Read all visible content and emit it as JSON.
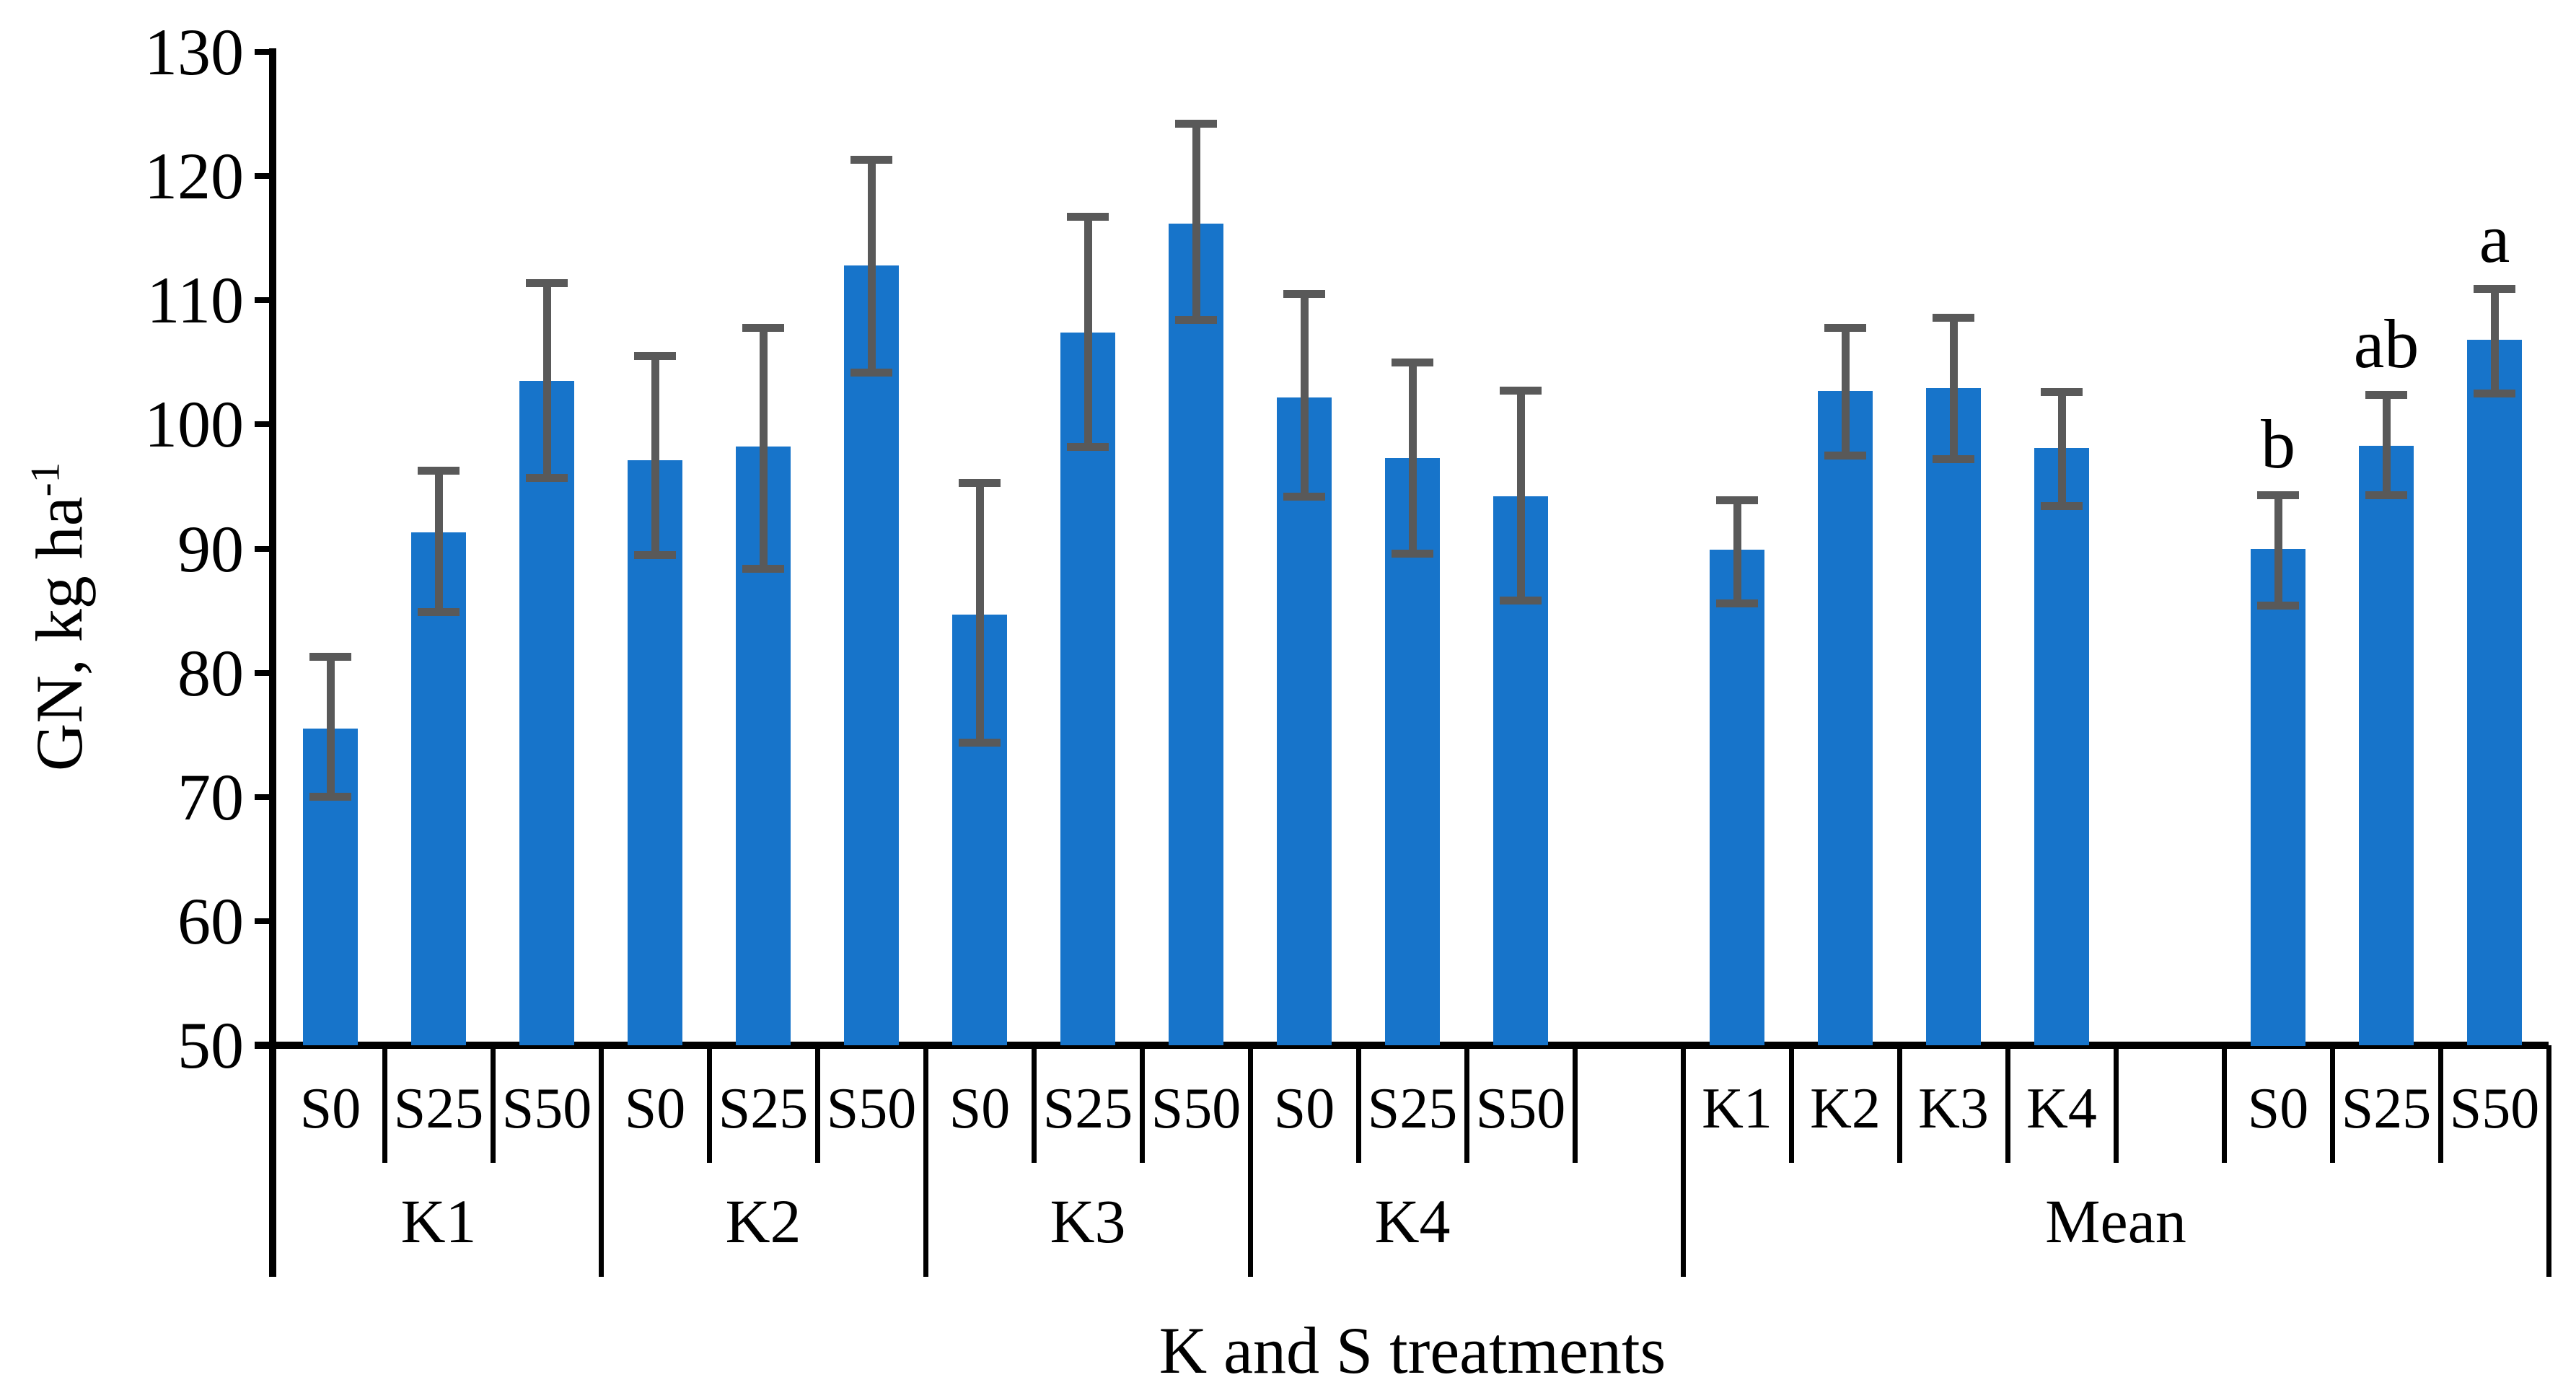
{
  "labels": {
    "y_axis_base": "GN, kg ha",
    "y_axis_sup": "-1",
    "x_axis": "K and S treatments"
  },
  "colors": {
    "bar": "#1774CA",
    "error_bar": "#595959",
    "axis": "#000000",
    "background": "#FFFFFF",
    "text": "#000000"
  },
  "chart_data": {
    "type": "bar",
    "title": "",
    "xlabel": "K and S treatments",
    "ylabel": "GN, kg ha⁻¹",
    "ylim": [
      50,
      130
    ],
    "yticks": [
      130,
      120,
      110,
      100,
      90,
      80,
      70,
      60,
      50
    ],
    "grid": false,
    "legend": null,
    "error_bars": true,
    "cells": [
      {
        "label": "S0",
        "value": 75.5,
        "err_lo": 70.0,
        "err_hi": 81.3,
        "letter": null
      },
      {
        "label": "S25",
        "value": 91.3,
        "err_lo": 84.9,
        "err_hi": 96.3,
        "letter": null
      },
      {
        "label": "S50",
        "value": 103.5,
        "err_lo": 95.7,
        "err_hi": 111.4,
        "letter": null
      },
      {
        "label": "S0",
        "value": 97.1,
        "err_lo": 89.5,
        "err_hi": 105.5,
        "letter": null
      },
      {
        "label": "S25",
        "value": 98.2,
        "err_lo": 88.4,
        "err_hi": 107.8,
        "letter": null
      },
      {
        "label": "S50",
        "value": 112.8,
        "err_lo": 104.2,
        "err_hi": 121.3,
        "letter": null
      },
      {
        "label": "S0",
        "value": 84.7,
        "err_lo": 74.4,
        "err_hi": 95.3,
        "letter": null
      },
      {
        "label": "S25",
        "value": 107.4,
        "err_lo": 98.2,
        "err_hi": 116.7,
        "letter": null
      },
      {
        "label": "S50",
        "value": 116.2,
        "err_lo": 108.4,
        "err_hi": 124.2,
        "letter": null
      },
      {
        "label": "S0",
        "value": 102.2,
        "err_lo": 94.2,
        "err_hi": 110.5,
        "letter": null
      },
      {
        "label": "S25",
        "value": 97.3,
        "err_lo": 89.6,
        "err_hi": 105.0,
        "letter": null
      },
      {
        "label": "S50",
        "value": 94.2,
        "err_lo": 85.8,
        "err_hi": 102.7,
        "letter": null
      },
      {
        "label": "",
        "value": null,
        "err_lo": null,
        "err_hi": null,
        "letter": null
      },
      {
        "label": "K1",
        "value": 89.9,
        "err_lo": 85.6,
        "err_hi": 93.9,
        "letter": null
      },
      {
        "label": "K2",
        "value": 102.7,
        "err_lo": 97.5,
        "err_hi": 107.8,
        "letter": null
      },
      {
        "label": "K3",
        "value": 102.9,
        "err_lo": 97.2,
        "err_hi": 108.6,
        "letter": null
      },
      {
        "label": "K4",
        "value": 98.1,
        "err_lo": 93.4,
        "err_hi": 102.6,
        "letter": null
      },
      {
        "label": "",
        "value": null,
        "err_lo": null,
        "err_hi": null,
        "letter": null
      },
      {
        "label": "S0",
        "value": 90.0,
        "err_lo": 85.4,
        "err_hi": 94.3,
        "letter": "b"
      },
      {
        "label": "S25",
        "value": 98.3,
        "err_lo": 94.3,
        "err_hi": 102.4,
        "letter": "ab"
      },
      {
        "label": "S50",
        "value": 106.8,
        "err_lo": 102.5,
        "err_hi": 110.9,
        "letter": "a"
      }
    ],
    "groups": [
      {
        "label": "K1",
        "from": 0,
        "to": 2
      },
      {
        "label": "K2",
        "from": 3,
        "to": 5
      },
      {
        "label": "K3",
        "from": 6,
        "to": 8
      },
      {
        "label": "K4",
        "from": 9,
        "to": 11
      },
      {
        "label": "Mean",
        "from": 13,
        "to": 20
      }
    ],
    "layout_hints": {
      "tall_boundaries": [
        3,
        6,
        9,
        13,
        21
      ],
      "legend_position": "none"
    }
  }
}
